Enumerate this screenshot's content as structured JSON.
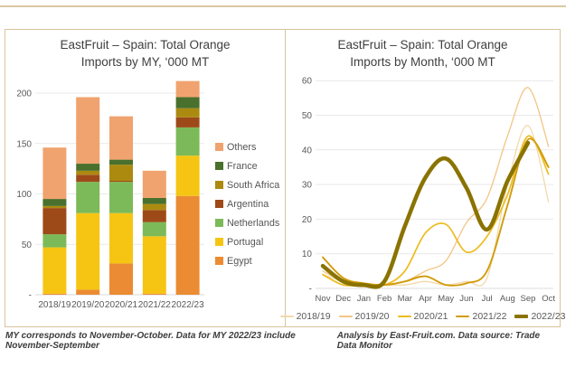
{
  "footnotes": {
    "left": "MY corresponds to November-October. Data for MY 2022/23 include November-September",
    "right": "Analysis by East-Fruit.com. Data source: Trade Data Monitor"
  },
  "chart_data": [
    {
      "type": "bar",
      "stacked": true,
      "title": "EastFruit – Spain: Total Orange Imports by MY, ‘000 MT",
      "title_line1": "EastFruit – Spain: Total Orange",
      "title_line2": "Imports by MY, ‘000 MT",
      "categories": [
        "2018/19",
        "2019/20",
        "2020/21",
        "2021/22",
        "2022/23"
      ],
      "ylim": [
        0,
        220
      ],
      "grid": true,
      "y_ticks": {
        "values": [
          0,
          50,
          100,
          150,
          200
        ],
        "labels": [
          "-",
          "50",
          "100",
          "150",
          "200"
        ]
      },
      "legend_position": "right",
      "legend_order_top_to_bottom": [
        "Others",
        "France",
        "South Africa",
        "Argentina",
        "Netherlands",
        "Portugal",
        "Egypt"
      ],
      "series": [
        {
          "name": "Egypt",
          "color": "#EB8B33",
          "values": [
            1,
            5,
            31,
            1,
            98
          ]
        },
        {
          "name": "Portugal",
          "color": "#F6C513",
          "values": [
            46,
            76,
            50,
            57,
            40
          ]
        },
        {
          "name": "Netherlands",
          "color": "#7CBA59",
          "values": [
            13,
            31,
            31,
            14,
            28
          ]
        },
        {
          "name": "Argentina",
          "color": "#9E4A18",
          "values": [
            26,
            7,
            1,
            12,
            10
          ]
        },
        {
          "name": "South Africa",
          "color": "#AC8A10",
          "values": [
            2,
            4,
            16,
            6,
            9
          ]
        },
        {
          "name": "France",
          "color": "#49702D",
          "values": [
            7,
            7,
            5,
            6,
            11
          ]
        },
        {
          "name": "Others",
          "color": "#F0A36E",
          "values": [
            51,
            66,
            43,
            27,
            16
          ]
        }
      ],
      "totals": [
        146,
        196,
        177,
        123,
        212
      ]
    },
    {
      "type": "line",
      "title": "EastFruit – Spain: Total Orange Imports by Month, ‘000 MT",
      "title_line1": "EastFruit – Spain: Total Orange",
      "title_line2": "Imports by Month, ‘000 MT",
      "x": [
        "Nov",
        "Dec",
        "Jan",
        "Feb",
        "Mar",
        "Apr",
        "May",
        "Jun",
        "Jul",
        "Aug",
        "Sep",
        "Oct"
      ],
      "ylim": [
        0,
        62
      ],
      "grid": true,
      "y_ticks": {
        "values": [
          0,
          10,
          20,
          30,
          40,
          50,
          60
        ],
        "labels": [
          "-",
          "10",
          "20",
          "30",
          "40",
          "50",
          "60"
        ]
      },
      "legend_position": "bottom",
      "series": [
        {
          "name": "2018/19",
          "color": "#F2D9AC",
          "width": 1.3,
          "values": [
            4,
            2,
            1,
            1,
            1,
            2,
            1,
            2,
            3,
            30,
            47,
            25
          ]
        },
        {
          "name": "2019/20",
          "color": "#F3C584",
          "width": 1.3,
          "values": [
            5,
            2,
            1,
            1,
            2,
            5,
            8,
            19,
            26,
            44,
            58,
            41
          ]
        },
        {
          "name": "2020/21",
          "color": "#EDBC1E",
          "width": 1.7,
          "values": [
            4,
            1,
            1,
            1,
            5,
            16,
            18.5,
            10.5,
            15,
            27,
            44,
            33
          ]
        },
        {
          "name": "2021/22",
          "color": "#D19C0B",
          "width": 1.9,
          "values": [
            9,
            3,
            1.5,
            1,
            2,
            3.5,
            1,
            1.5,
            5,
            24,
            43,
            35
          ]
        },
        {
          "name": "2022/23",
          "color": "#8A7300",
          "width": 4.5,
          "values": [
            6.5,
            2,
            1,
            2,
            18,
            32,
            37.5,
            29,
            17,
            31,
            42,
            null
          ]
        }
      ]
    }
  ]
}
